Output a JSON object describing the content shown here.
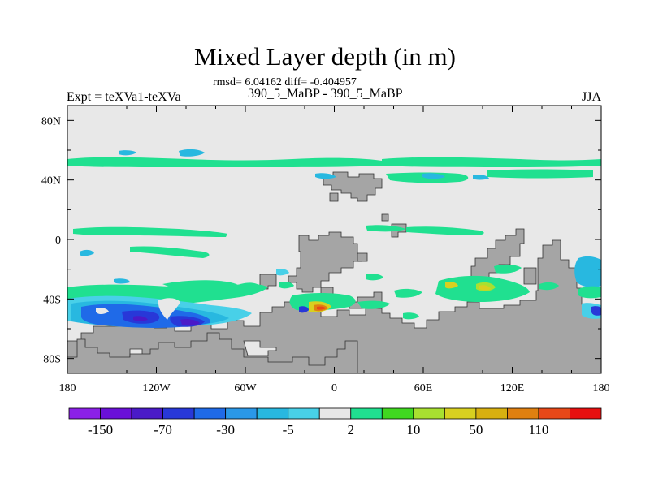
{
  "chart_data": {
    "type": "heatmap",
    "title": "Mixed Layer depth (in m)",
    "subtitle": "rmsd= 6.04162 diff= -0.404957",
    "left_label": "Expt = teXVa1-teXVa",
    "center_label": "390_5_MaBP - 390_5_MaBP",
    "right_label": "JJA",
    "x_ticks": [
      "180",
      "120W",
      "60W",
      "0",
      "60E",
      "120E",
      "180"
    ],
    "y_ticks": [
      "80N",
      "40N",
      "0",
      "40S",
      "80S"
    ],
    "xlim": [
      -180,
      180
    ],
    "ylim": [
      -90,
      90
    ],
    "land_color": "#a5a5a5",
    "ocean_color": "#e8e8e8",
    "colorbar": {
      "colors": [
        "#8b20e8",
        "#6a10d8",
        "#4a1ac8",
        "#2838d8",
        "#1f6ae8",
        "#2a98e8",
        "#28b8e0",
        "#48d0e8",
        "#e8e8e8",
        "#20e090",
        "#40d820",
        "#a8e030",
        "#d8d020",
        "#d8b010",
        "#e08010",
        "#e84818",
        "#e81010"
      ],
      "labels": [
        "-150",
        "-70",
        "-30",
        "-5",
        "2",
        "10",
        "50",
        "110"
      ]
    }
  }
}
